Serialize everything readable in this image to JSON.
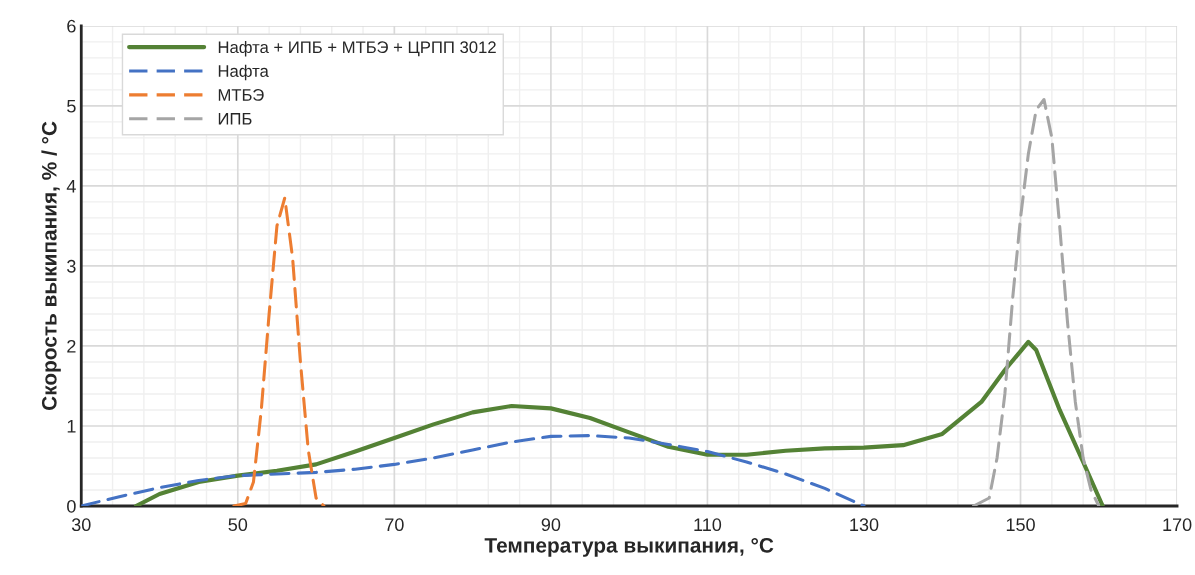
{
  "chart_data": {
    "type": "line",
    "xlabel": "Температура выкипания, °C",
    "ylabel": "Скорость выкипания, % / °C",
    "xlim": [
      30,
      170
    ],
    "xticks": [
      30,
      50,
      70,
      90,
      110,
      130,
      150,
      170
    ],
    "ylim": [
      0,
      6
    ],
    "yticks": [
      0,
      1,
      2,
      3,
      4,
      5,
      6
    ],
    "grid": true,
    "legend": "top left",
    "marker": "none",
    "series": [
      {
        "name": "Нафта + ИПБ + МТБЭ + ЦРПП 3012",
        "color": "#548235",
        "line_style": "solid",
        "x": [
          37,
          40,
          45,
          50,
          55,
          60,
          65,
          70,
          75,
          80,
          85,
          90,
          95,
          100,
          105,
          110,
          115,
          120,
          125,
          130,
          135,
          140,
          145,
          148,
          151,
          152,
          155,
          158,
          160.5
        ],
        "values": [
          0,
          0.15,
          0.3,
          0.38,
          0.44,
          0.52,
          0.68,
          0.85,
          1.02,
          1.17,
          1.25,
          1.22,
          1.1,
          0.92,
          0.74,
          0.64,
          0.64,
          0.69,
          0.72,
          0.73,
          0.76,
          0.9,
          1.3,
          1.7,
          2.05,
          1.95,
          1.2,
          0.55,
          0
        ]
      },
      {
        "name": "Нафта",
        "color": "#4472c4",
        "line_style": "dashed",
        "x": [
          30,
          35,
          40,
          45,
          50,
          55,
          60,
          65,
          70,
          75,
          80,
          85,
          90,
          95,
          100,
          105,
          110,
          115,
          120,
          125,
          130
        ],
        "values": [
          0,
          0.12,
          0.23,
          0.32,
          0.38,
          0.4,
          0.42,
          0.46,
          0.52,
          0.6,
          0.7,
          0.8,
          0.87,
          0.88,
          0.85,
          0.77,
          0.68,
          0.55,
          0.4,
          0.22,
          0
        ]
      },
      {
        "name": "МТБЭ",
        "color": "#ed7d31",
        "line_style": "dashed",
        "x": [
          49.5,
          51,
          52,
          53,
          54,
          55,
          56,
          57,
          58,
          59,
          60,
          61
        ],
        "values": [
          0,
          0.03,
          0.3,
          1.2,
          2.4,
          3.5,
          3.85,
          3.1,
          1.8,
          0.7,
          0.1,
          0
        ]
      },
      {
        "name": "ИПБ",
        "color": "#a5a5a5",
        "line_style": "dashed",
        "x": [
          144,
          146,
          147,
          148,
          149,
          150,
          151,
          152,
          153,
          154,
          155,
          156,
          157,
          158,
          159,
          160
        ],
        "values": [
          0,
          0.1,
          0.6,
          1.4,
          2.6,
          3.6,
          4.4,
          4.95,
          5.08,
          4.6,
          3.5,
          2.3,
          1.3,
          0.6,
          0.2,
          0
        ]
      }
    ]
  }
}
